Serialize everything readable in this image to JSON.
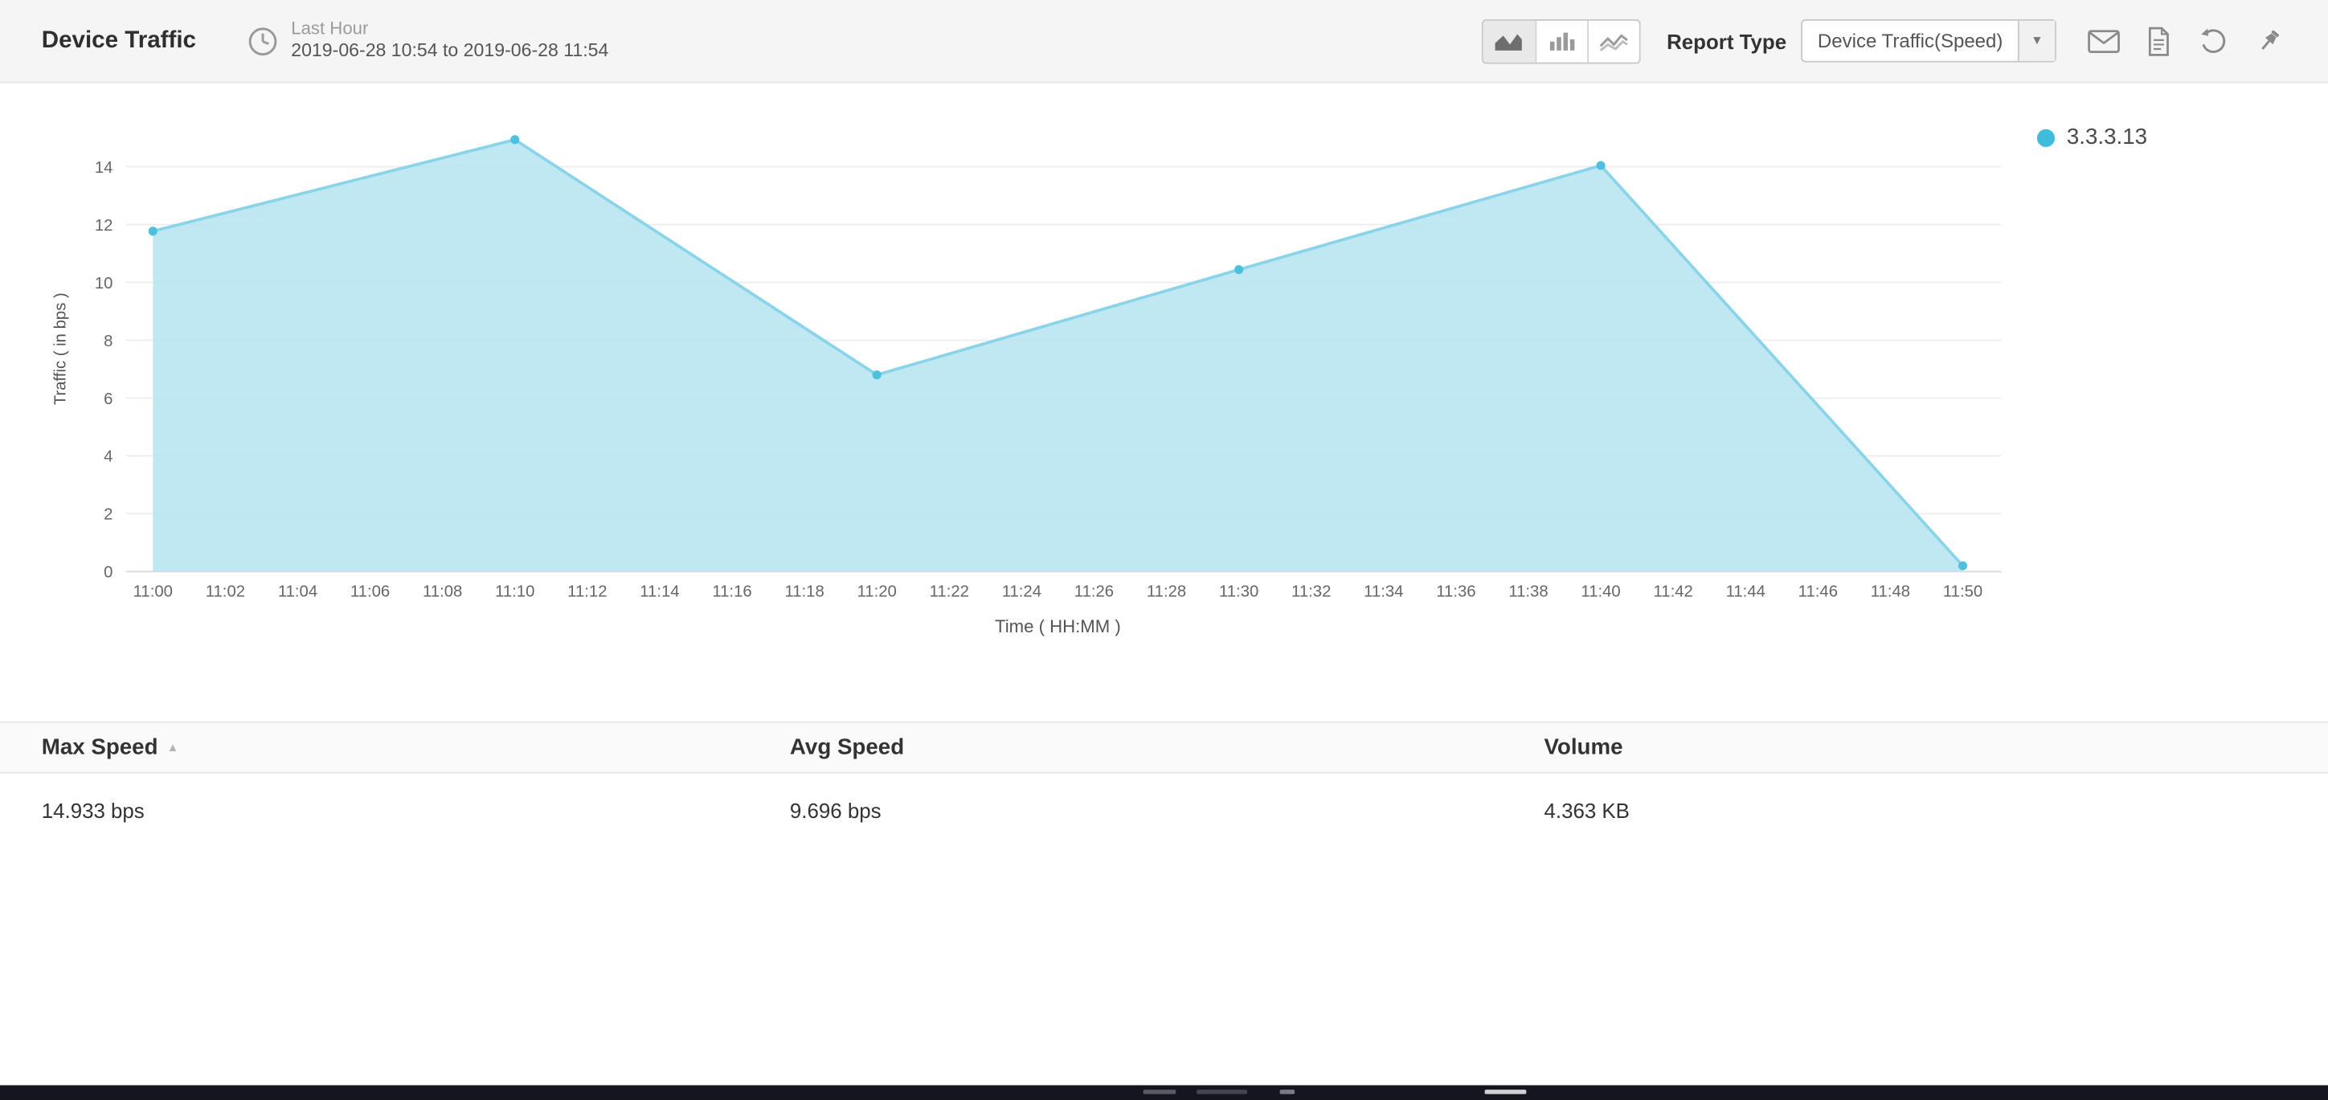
{
  "header": {
    "title": "Device Traffic",
    "period_label": "Last Hour",
    "period_range": "2019-06-28 10:54 to 2019-06-28 11:54",
    "report_type_label": "Report Type",
    "report_type_value": "Device Traffic(Speed)",
    "dropdown_chevron": "▾",
    "icons": {
      "timeframe": "clock-icon",
      "chart_types": [
        "area-chart-icon",
        "bar-chart-icon",
        "line-chart-icon"
      ],
      "active_chart_type": "area",
      "actions": [
        "email-icon",
        "pdf-export-icon",
        "refresh-icon",
        "pin-icon"
      ]
    }
  },
  "chart_data": {
    "type": "area",
    "title": "",
    "x": [
      "11:00",
      "11:10",
      "11:20",
      "11:30",
      "11:40",
      "11:50"
    ],
    "series": [
      {
        "name": "3.3.3.13",
        "values": [
          11.77,
          14.933,
          6.8,
          10.44,
          14.04,
          0.2
        ]
      }
    ],
    "xticks": [
      "11:00",
      "11:02",
      "11:04",
      "11:06",
      "11:08",
      "11:10",
      "11:12",
      "11:14",
      "11:16",
      "11:18",
      "11:20",
      "11:22",
      "11:24",
      "11:26",
      "11:28",
      "11:30",
      "11:32",
      "11:34",
      "11:36",
      "11:38",
      "11:40",
      "11:42",
      "11:44",
      "11:46",
      "11:48",
      "11:50"
    ],
    "yticks": [
      0,
      2,
      4,
      6,
      8,
      10,
      12,
      14
    ],
    "ylim": [
      0,
      15.4
    ],
    "xlabel": "Time ( HH:MM )",
    "ylabel": "Traffic ( in bps )",
    "grid": true,
    "legend_position": "top-right",
    "colors": {
      "fill": "#b9e5f2",
      "stroke": "#8ad4e9",
      "point": "#4cc0dd",
      "legend_dot": "#3fbcdc"
    }
  },
  "table": {
    "columns": [
      {
        "label": "Max Speed",
        "sortable": true,
        "sort_icon": "▲"
      },
      {
        "label": "Avg Speed",
        "sortable": true
      },
      {
        "label": "Volume",
        "sortable": true
      }
    ],
    "rows": [
      [
        "14.933 bps",
        "9.696 bps",
        "4.363 KB"
      ]
    ]
  }
}
